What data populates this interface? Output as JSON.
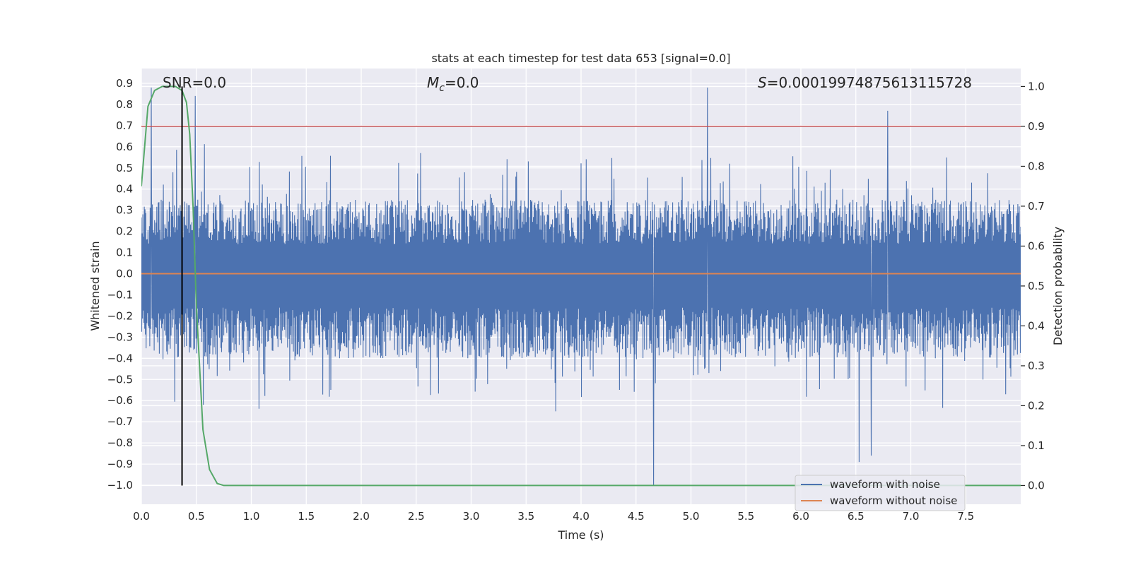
{
  "chart_data": {
    "type": "line",
    "title": "stats at each timestep for test data 653 [signal=0.0]",
    "xlabel": "Time (s)",
    "ylabel": "Whitened strain",
    "y2label": "Detection probability",
    "xlim": [
      0.0,
      8.0
    ],
    "ylim": [
      -1.09,
      0.97
    ],
    "y2lim": [
      -0.047,
      1.045
    ],
    "xticks": [
      0.0,
      0.5,
      1.0,
      1.5,
      2.0,
      2.5,
      3.0,
      3.5,
      4.0,
      4.5,
      5.0,
      5.5,
      6.0,
      6.5,
      7.0,
      7.5
    ],
    "xtick_labels": [
      "0.0",
      "0.5",
      "1.0",
      "1.5",
      "2.0",
      "2.5",
      "3.0",
      "3.5",
      "4.0",
      "4.5",
      "5.0",
      "5.5",
      "6.0",
      "6.5",
      "7.0",
      "7.5"
    ],
    "yticks": [
      0.9,
      0.8,
      0.7,
      0.6,
      0.5,
      0.4,
      0.3,
      0.2,
      0.1,
      0.0,
      -0.1,
      -0.2,
      -0.3,
      -0.4,
      -0.5,
      -0.6,
      -0.7,
      -0.8,
      -0.9,
      -1.0
    ],
    "ytick_labels": [
      "0.9",
      "0.8",
      "0.7",
      "0.6",
      "0.5",
      "0.4",
      "0.3",
      "0.2",
      "0.1",
      "0.0",
      "−0.1",
      "−0.2",
      "−0.3",
      "−0.4",
      "−0.5",
      "−0.6",
      "−0.7",
      "−0.8",
      "−0.9",
      "−1.0"
    ],
    "y2ticks": [
      1.0,
      0.9,
      0.8,
      0.7,
      0.6,
      0.5,
      0.4,
      0.3,
      0.2,
      0.1,
      0.0
    ],
    "y2tick_labels": [
      "1.0",
      "0.9",
      "0.8",
      "0.7",
      "0.6",
      "0.5",
      "0.4",
      "0.3",
      "0.2",
      "0.1",
      "0.0"
    ],
    "annotations": {
      "snr": "SNR=0.0",
      "mc_symbol": "M",
      "mc_sub": "c",
      "mc_value": "=0.0",
      "s_symbol": "S",
      "s_value": "=0.00019974875613115728"
    },
    "noise_series": {
      "name": "waveform with noise",
      "color": "#4c72b0",
      "time_range": [
        0.0,
        8.0
      ],
      "typical_upper": 0.35,
      "typical_lower": -0.4,
      "peak_max": 0.88,
      "peak_min": -1.0,
      "notable_peaks": [
        {
          "t": 5.15,
          "v": 0.88
        },
        {
          "t": 0.49,
          "v": 0.84
        },
        {
          "t": 0.09,
          "v": 0.88
        },
        {
          "t": 4.66,
          "v": -1.0
        },
        {
          "t": 6.53,
          "v": -0.89
        },
        {
          "t": 6.64,
          "v": -0.86
        },
        {
          "t": 6.79,
          "v": 0.77
        }
      ]
    },
    "clean_series": {
      "name": "waveform without noise",
      "color": "#dd8452",
      "value": 0.0
    },
    "probability_series": {
      "name": "detection probability",
      "color": "#55a868",
      "x": [
        0.0,
        0.06,
        0.12,
        0.19,
        0.25,
        0.31,
        0.37,
        0.41,
        0.44,
        0.47,
        0.5,
        0.56,
        0.62,
        0.69,
        0.75,
        0.81,
        1.0,
        8.0
      ],
      "y": [
        0.75,
        0.95,
        0.99,
        1.0,
        1.0,
        1.0,
        0.99,
        0.96,
        0.88,
        0.7,
        0.45,
        0.14,
        0.04,
        0.005,
        0.0,
        0.0,
        0.0,
        0.0
      ]
    },
    "threshold": {
      "value": 0.9,
      "axis": "right",
      "color": "#c44e52"
    },
    "marker_line": {
      "t": 0.37,
      "color": "#000000",
      "y2_range": [
        0.0,
        1.0
      ]
    },
    "legend": {
      "location": "lower-right",
      "entries": [
        "waveform with noise",
        "waveform without noise"
      ]
    },
    "style": {
      "background": "#eaeaf2",
      "grid": true,
      "grid_color": "#ffffff"
    }
  }
}
